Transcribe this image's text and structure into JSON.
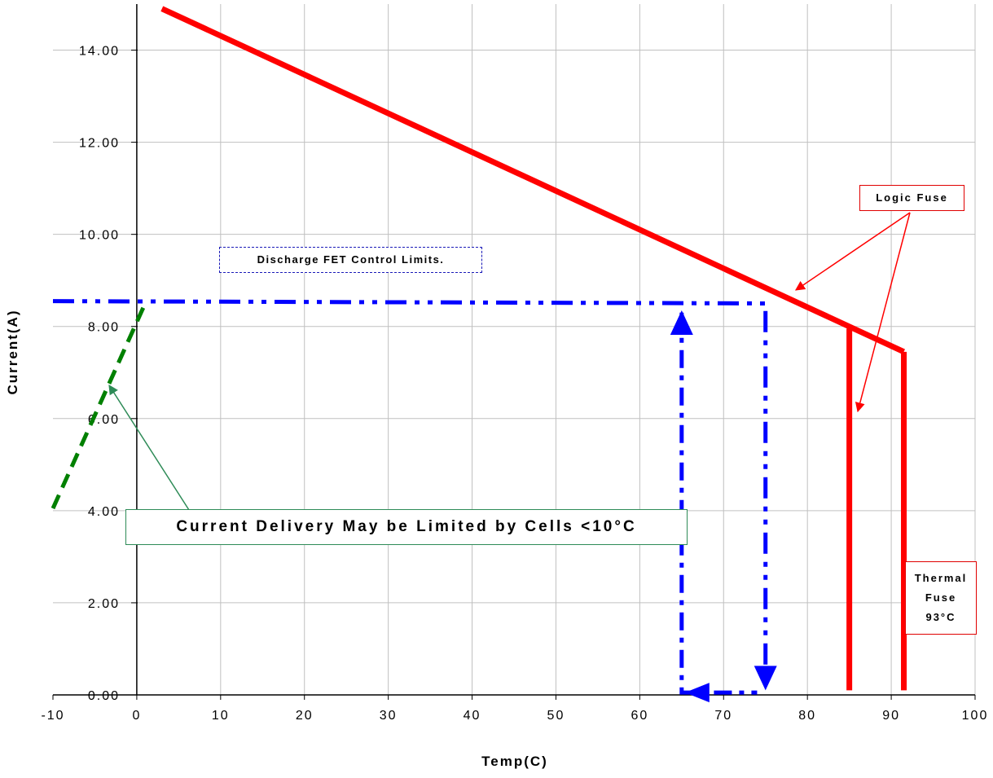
{
  "chart_data": {
    "type": "line",
    "xlabel": "Temp(C)",
    "ylabel": "Current(A)",
    "xlim": [
      -10,
      100
    ],
    "ylim": [
      0,
      15
    ],
    "x_ticks": [
      "-10",
      "0",
      "10",
      "20",
      "30",
      "40",
      "50",
      "60",
      "70",
      "80",
      "90",
      "100"
    ],
    "y_ticks": [
      "0.00",
      "2.00",
      "4.00",
      "6.00",
      "8.00",
      "10.00",
      "12.00",
      "14.00"
    ],
    "grid": true,
    "series": [
      {
        "style": "solid",
        "color": "#ff0000",
        "x": [
          3,
          91.5
        ],
        "y": [
          14.9,
          7.45
        ]
      },
      {
        "style": "solid",
        "color": "#ff0000",
        "x": [
          85,
          85
        ],
        "y": [
          0.1,
          7.95
        ]
      },
      {
        "style": "solid",
        "color": "#ff0000",
        "x": [
          91.5,
          91.5
        ],
        "y": [
          0.1,
          7.45
        ]
      },
      {
        "style": "dash-dot-dot",
        "color": "#0000ff",
        "x": [
          -10,
          75,
          75
        ],
        "y": [
          8.55,
          8.5,
          0.3
        ]
      },
      {
        "style": "dash-dot",
        "color": "#0000ff",
        "x": [
          65,
          65,
          74
        ],
        "y": [
          8.3,
          0.05,
          0.05
        ]
      },
      {
        "style": "dashed",
        "color": "#008000",
        "x": [
          -10,
          1
        ],
        "y": [
          4.05,
          8.5
        ]
      }
    ],
    "annotations": {
      "logic_fuse": "Logic Fuse",
      "thermal_fuse": [
        "Thermal",
        "Fuse",
        "93°C"
      ],
      "discharge_fet": "Discharge FET Control Limits.",
      "cells_note": "Current Delivery May be Limited by Cells <10°C"
    },
    "colors": {
      "grid": "#c0c0c0",
      "fuse": "#ff0000",
      "fet": "#0000ff",
      "cells": "#008000",
      "callout_red": "#e00000",
      "callout_green": "#2e8b57"
    }
  }
}
